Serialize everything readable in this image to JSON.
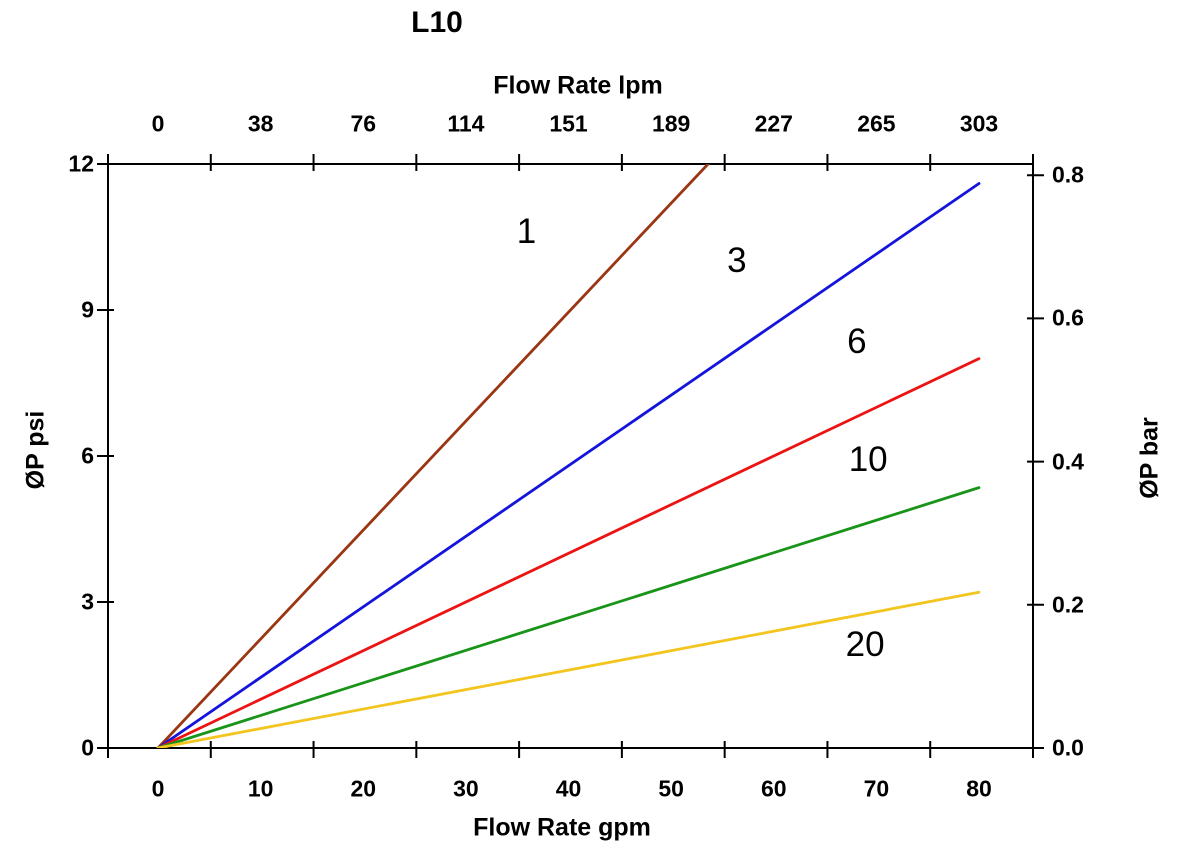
{
  "title": "L10",
  "chart_data": {
    "type": "line",
    "title": "L10",
    "grid": false,
    "legend": "none (inline labels next to each line)",
    "x_bottom": {
      "label": "Flow Rate gpm",
      "ticks": [
        0,
        10,
        20,
        30,
        40,
        50,
        60,
        70,
        80
      ],
      "range": [
        0,
        80
      ]
    },
    "x_top": {
      "label": "Flow Rate lpm",
      "ticks": [
        0,
        38,
        76,
        114,
        151,
        189,
        227,
        265,
        303
      ]
    },
    "y_left": {
      "label": "ØP psi",
      "ticks": [
        0,
        3,
        6,
        9,
        12
      ],
      "range": [
        0,
        12
      ]
    },
    "y_right": {
      "label": "ØP bar",
      "ticks": [
        "0.0",
        "0.2",
        "0.4",
        "0.6",
        "0.8"
      ],
      "range": [
        0,
        0.8
      ]
    },
    "series": [
      {
        "label": "1",
        "color": "#9A3612",
        "points": [
          [
            0,
            0
          ],
          [
            53.6,
            12
          ]
        ],
        "note": "clipped at top of plot",
        "label_pos": [
          35.9,
          10.6
        ]
      },
      {
        "label": "3",
        "color": "#1414DC",
        "points": [
          [
            0,
            0
          ],
          [
            80,
            11.6
          ]
        ],
        "note": "",
        "label_pos": [
          56.4,
          10.0
        ]
      },
      {
        "label": "6",
        "color": "#EC1313",
        "points": [
          [
            0,
            0
          ],
          [
            80,
            8.0
          ]
        ],
        "note": "",
        "label_pos": [
          68.1,
          8.35
        ]
      },
      {
        "label": "10",
        "color": "#189418",
        "points": [
          [
            0,
            0
          ],
          [
            80,
            5.35
          ]
        ],
        "note": "",
        "label_pos": [
          69.2,
          5.92
        ]
      },
      {
        "label": "20",
        "color": "#F2C51F",
        "points": [
          [
            0,
            0
          ],
          [
            80,
            3.2
          ]
        ],
        "note": "",
        "label_pos": [
          68.9,
          2.12
        ]
      }
    ],
    "axis_color": "#000000",
    "background_color": "#ffffff"
  }
}
